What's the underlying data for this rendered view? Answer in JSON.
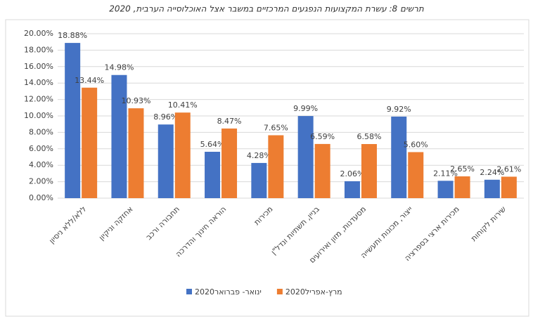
{
  "chart_data": {
    "type": "bar",
    "title": "תרשים 8: עשרת המקצועות הנפגעים המרכזיים במשבר אצל האוכלוסייה הערבית, 2020",
    "categories": [
      "ללא/ללא ניסיון",
      "אחזקה וניקיון",
      "תחבורה ורכב",
      "הוראה חינוך והדרכה",
      "מכירות",
      "בניין, תשתיות ונדל\"ן",
      "מסעדנות, מזון ואירועים",
      "ייצור, מכונות ותעשייה",
      "מכירות ארצי בספרציה",
      "שירות לקוחות"
    ],
    "series": [
      {
        "name": "ינואר- פברואר2020",
        "color": "#4472c4",
        "values": [
          18.88,
          14.98,
          8.96,
          5.64,
          4.28,
          9.99,
          2.06,
          9.92,
          2.11,
          2.24
        ],
        "value_labels": [
          "18.88%",
          "14.98%",
          "8.96%",
          "5.64%",
          "4.28%",
          "9.99%",
          "2.06%",
          "9.92%",
          "2.11%",
          "2.24%"
        ]
      },
      {
        "name": "מרץ-אפריל2020",
        "color": "#ed7d31",
        "values": [
          13.44,
          10.93,
          10.41,
          8.47,
          7.65,
          6.59,
          6.58,
          5.6,
          2.65,
          2.61
        ],
        "value_labels": [
          "13.44%",
          "10.93%",
          "10.41%",
          "8.47%",
          "7.65%",
          "6.59%",
          "6.58%",
          "5.60%",
          "2.65%",
          "2.61%"
        ]
      }
    ],
    "ylim": [
      0,
      20
    ],
    "yticks": [
      {
        "value": 0,
        "label": "0.00%"
      },
      {
        "value": 2,
        "label": "2.00%"
      },
      {
        "value": 4,
        "label": "4.00%"
      },
      {
        "value": 6,
        "label": "6.00%"
      },
      {
        "value": 8,
        "label": "8.00%"
      },
      {
        "value": 10,
        "label": "10.00%"
      },
      {
        "value": 12,
        "label": "12.00%"
      },
      {
        "value": 14,
        "label": "14.00%"
      },
      {
        "value": 16,
        "label": "16.00%"
      },
      {
        "value": 18,
        "label": "18.00%"
      },
      {
        "value": 20,
        "label": "20.00%"
      }
    ],
    "grid": true
  }
}
